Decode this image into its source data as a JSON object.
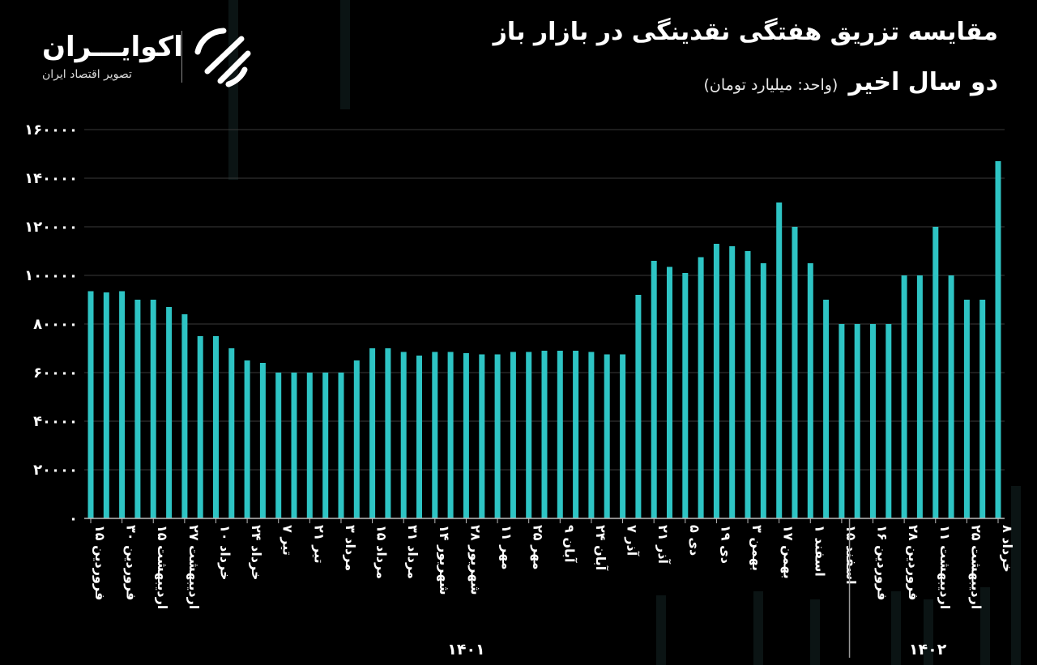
{
  "header": {
    "title_line1": "مقایسه تزریق هفتگی نقدینگی در بازار باز",
    "title_line2": "دو سال اخیر",
    "unit": "(واحد: میلیارد تومان)"
  },
  "brand": {
    "name": "اکوایـــران",
    "tagline": "تصویر اقتصاد ایران"
  },
  "colors": {
    "bar": "#2ec4c4",
    "background": "#000000",
    "grid": "#3a3a3a"
  },
  "chart_data": {
    "type": "bar",
    "ylim": [
      0,
      160000
    ],
    "ytick_labels": [
      "۰",
      "۲۰۰۰۰",
      "۴۰۰۰۰",
      "۶۰۰۰۰",
      "۸۰۰۰۰",
      "۱۰۰۰۰۰",
      "۱۲۰۰۰۰",
      "۱۴۰۰۰۰",
      "۱۶۰۰۰۰"
    ],
    "yticks": [
      0,
      20000,
      40000,
      60000,
      80000,
      100000,
      120000,
      140000,
      160000
    ],
    "grid": true,
    "values": [
      93500,
      93000,
      93500,
      90000,
      90000,
      87000,
      84000,
      75000,
      75000,
      70000,
      65000,
      64000,
      60000,
      60000,
      60000,
      60000,
      60000,
      65000,
      70000,
      70000,
      68500,
      67000,
      68500,
      68500,
      68000,
      67500,
      67500,
      68500,
      68500,
      69000,
      69000,
      69000,
      68500,
      67500,
      67500,
      92000,
      106000,
      103500,
      101000,
      107500,
      113000,
      112000,
      110000,
      105000,
      130000,
      120000,
      105000,
      90000,
      80000,
      80000,
      80000,
      80000,
      100000,
      100000,
      120000,
      100000,
      90000,
      90000,
      147000
    ],
    "x_tick_labels": [
      {
        "index": 0,
        "label": "۱۵ فروردین"
      },
      {
        "index": 2,
        "label": "۳۰ فروردین"
      },
      {
        "index": 4,
        "label": "۱۵ اردیبهشت"
      },
      {
        "index": 6,
        "label": "۲۷ اردیبهشت"
      },
      {
        "index": 8,
        "label": "۱۰ خرداد"
      },
      {
        "index": 10,
        "label": "۲۴ خرداد"
      },
      {
        "index": 12,
        "label": "۷ تیر"
      },
      {
        "index": 14,
        "label": "۲۱ تیر"
      },
      {
        "index": 16,
        "label": "۳ مرداد"
      },
      {
        "index": 18,
        "label": "۱۵ مرداد"
      },
      {
        "index": 20,
        "label": "۳۱ مرداد"
      },
      {
        "index": 22,
        "label": "۱۴ شهریور"
      },
      {
        "index": 24,
        "label": "۲۸ شهریور"
      },
      {
        "index": 26,
        "label": "۱۱ مهر"
      },
      {
        "index": 28,
        "label": "۲۵ مهر"
      },
      {
        "index": 30,
        "label": "۹ آبان"
      },
      {
        "index": 32,
        "label": "۲۴ آبان"
      },
      {
        "index": 34,
        "label": "۷ آذر"
      },
      {
        "index": 36,
        "label": "۲۱ آذر"
      },
      {
        "index": 38,
        "label": "۵ دی"
      },
      {
        "index": 40,
        "label": "۱۹ دی"
      },
      {
        "index": 42,
        "label": "۳ بهمن"
      },
      {
        "index": 44,
        "label": "۱۷ بهمن"
      },
      {
        "index": 46,
        "label": "۱ اسفند"
      },
      {
        "index": 48,
        "label": "۱۵ اسفند"
      },
      {
        "index": 50,
        "label": "۱۶ فروردین"
      },
      {
        "index": 52,
        "label": "۲۸ فروردین"
      },
      {
        "index": 54,
        "label": "۱۱ اردیبهشت"
      },
      {
        "index": 56,
        "label": "۲۵ اردیبهشت"
      },
      {
        "index": 58,
        "label": "۸ خرداد"
      }
    ],
    "groups": [
      {
        "label": "۱۴۰۱",
        "start": 0,
        "end": 48
      },
      {
        "label": "۱۴۰۲",
        "start": 49,
        "end": 58
      }
    ]
  }
}
